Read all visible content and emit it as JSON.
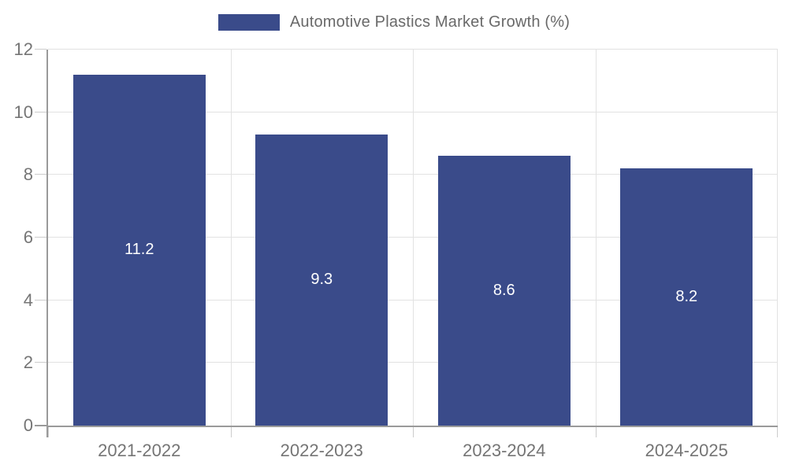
{
  "chart_data": {
    "type": "bar",
    "title": "Automotive Plastics Market Growth (%)",
    "categories": [
      "2021-2022",
      "2022-2023",
      "2023-2024",
      "2024-2025"
    ],
    "values": [
      11.2,
      9.3,
      8.6,
      8.2
    ],
    "value_labels": [
      "11.2",
      "9.3",
      "8.6",
      "8.2"
    ],
    "ylim": [
      0,
      12
    ],
    "yticks": [
      0,
      2,
      4,
      6,
      8,
      10,
      12
    ],
    "grid": true,
    "legend_position": "top-center",
    "colors": {
      "bar": "#3a4b8a",
      "value_label": "#ffffff",
      "axis_line": "#9a9a9a",
      "gridline": "#e2e2e2",
      "tick": "#cccccc",
      "axis_text": "#757575",
      "legend_text": "#696969"
    }
  }
}
